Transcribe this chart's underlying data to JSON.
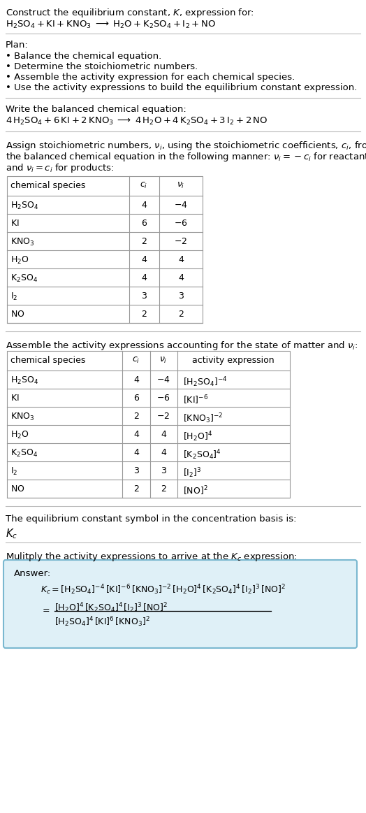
{
  "bg_color": "#ffffff",
  "text_color": "#000000",
  "title_line1": "Construct the equilibrium constant, $K$, expression for:",
  "title_line2": "$\\mathrm{H_2SO_4 + KI + KNO_3} \\;\\longrightarrow\\; \\mathrm{H_2O + K_2SO_4 + I_2 + NO}$",
  "plan_header": "Plan:",
  "plan_items": [
    "• Balance the chemical equation.",
    "• Determine the stoichiometric numbers.",
    "• Assemble the activity expression for each chemical species.",
    "• Use the activity expressions to build the equilibrium constant expression."
  ],
  "balanced_header": "Write the balanced chemical equation:",
  "balanced_eq": "$4\\,\\mathrm{H_2SO_4} + 6\\,\\mathrm{KI} + 2\\,\\mathrm{KNO_3} \\;\\longrightarrow\\; 4\\,\\mathrm{H_2O} + 4\\,\\mathrm{K_2SO_4} + 3\\,\\mathrm{I_2} + 2\\,\\mathrm{NO}$",
  "stoich_text": [
    "Assign stoichiometric numbers, $\\nu_i$, using the stoichiometric coefficients, $c_i$, from",
    "the balanced chemical equation in the following manner: $\\nu_i = -c_i$ for reactants",
    "and $\\nu_i = c_i$ for products:"
  ],
  "table1_rows": [
    [
      "$\\mathrm{H_2SO_4}$",
      "4",
      "$-4$"
    ],
    [
      "$\\mathrm{KI}$",
      "6",
      "$-6$"
    ],
    [
      "$\\mathrm{KNO_3}$",
      "2",
      "$-2$"
    ],
    [
      "$\\mathrm{H_2O}$",
      "4",
      "4"
    ],
    [
      "$\\mathrm{K_2SO_4}$",
      "4",
      "4"
    ],
    [
      "$\\mathrm{I_2}$",
      "3",
      "3"
    ],
    [
      "$\\mathrm{NO}$",
      "2",
      "2"
    ]
  ],
  "activity_header": "Assemble the activity expressions accounting for the state of matter and $\\nu_i$:",
  "table2_rows": [
    [
      "$\\mathrm{H_2SO_4}$",
      "4",
      "$-4$",
      "$[\\mathrm{H_2SO_4}]^{-4}$"
    ],
    [
      "$\\mathrm{KI}$",
      "6",
      "$-6$",
      "$[\\mathrm{KI}]^{-6}$"
    ],
    [
      "$\\mathrm{KNO_3}$",
      "2",
      "$-2$",
      "$[\\mathrm{KNO_3}]^{-2}$"
    ],
    [
      "$\\mathrm{H_2O}$",
      "4",
      "4",
      "$[\\mathrm{H_2O}]^{4}$"
    ],
    [
      "$\\mathrm{K_2SO_4}$",
      "4",
      "4",
      "$[\\mathrm{K_2SO_4}]^{4}$"
    ],
    [
      "$\\mathrm{I_2}$",
      "3",
      "3",
      "$[\\mathrm{I_2}]^{3}$"
    ],
    [
      "$\\mathrm{NO}$",
      "2",
      "2",
      "$[\\mathrm{NO}]^{2}$"
    ]
  ],
  "Kc_header": "The equilibrium constant symbol in the concentration basis is:",
  "Kc_symbol": "$K_c$",
  "multiply_header": "Mulitply the activity expressions to arrive at the $K_c$ expression:",
  "answer_label": "Answer:",
  "answer_line1": "$K_c = [\\mathrm{H_2SO_4}]^{-4}\\,[\\mathrm{KI}]^{-6}\\,[\\mathrm{KNO_3}]^{-2}\\,[\\mathrm{H_2O}]^{4}\\,[\\mathrm{K_2SO_4}]^{4}\\,[\\mathrm{I_2}]^{3}\\,[\\mathrm{NO}]^{2}$",
  "answer_eq_sign": "$=$",
  "answer_line2_num": "$[\\mathrm{H_2O}]^{4}\\,[\\mathrm{K_2SO_4}]^{4}\\,[\\mathrm{I_2}]^{3}\\,[\\mathrm{NO}]^{2}$",
  "answer_line2_den": "$[\\mathrm{H_2SO_4}]^{4}\\,[\\mathrm{KI}]^{6}\\,[\\mathrm{KNO_3}]^{2}$",
  "answer_box_color": "#dff0f7",
  "answer_box_edge": "#7ab8d0",
  "table_line_color": "#999999",
  "hline_color": "#bbbbbb",
  "fs": 9.5,
  "fs_small": 9.0
}
